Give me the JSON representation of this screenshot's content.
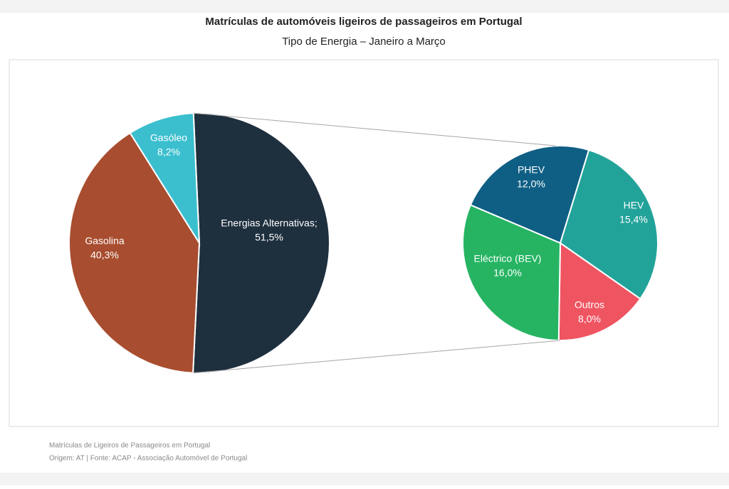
{
  "chart_data": [
    {
      "type": "pie",
      "title": "Matrículas de automóveis ligeiros de passageiros em Portugal",
      "subtitle": "Tipo de Energia – Janeiro a Março",
      "categories": [
        "Energias Alternativas;",
        "Gasolina",
        "Gasóleo"
      ],
      "values": [
        51.5,
        40.3,
        8.2
      ],
      "value_labels": [
        "51,5%",
        "40,3%",
        "8,2%"
      ],
      "colors": [
        "#1e2f3e",
        "#a84d2f",
        "#3bbfcf"
      ],
      "source": [
        "Matrículas de Ligeiros de Passageiros em Portugal",
        "Origem: AT | Fonte: ACAP - Associação Automóvel de Portugal"
      ]
    },
    {
      "type": "pie",
      "categories": [
        "PHEV",
        "HEV",
        "Outros",
        "Eléctrico (BEV)"
      ],
      "values": [
        12.0,
        15.4,
        8.0,
        16.0
      ],
      "value_labels": [
        "12,0%",
        "15,4%",
        "8,0%",
        "16,0%"
      ],
      "colors": [
        "#0f5f85",
        "#22a39a",
        "#ef5461",
        "#26b463"
      ]
    }
  ]
}
